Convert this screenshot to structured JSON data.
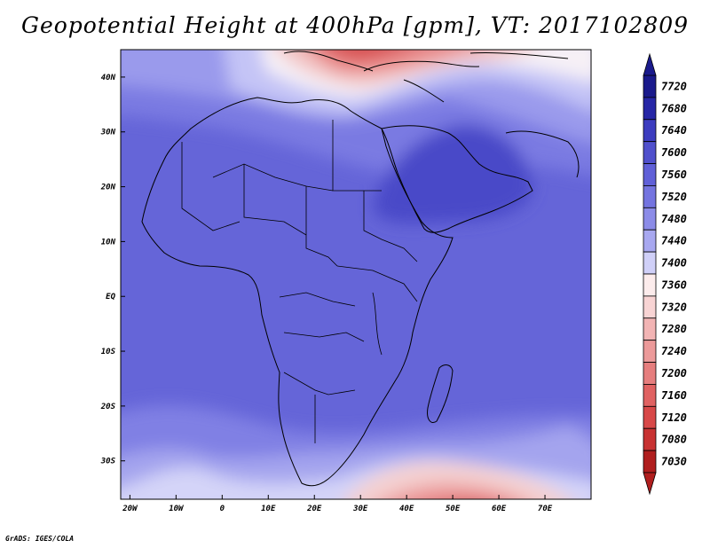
{
  "title": "Geopotential Height at 400hPa [gpm], VT: 2017102809",
  "credit": "GrADS: IGES/COLA",
  "map": {
    "lon_range": [
      -22,
      80
    ],
    "lat_range": [
      -37,
      45
    ],
    "lat_ticks": [
      {
        "value": 40,
        "label": "40N"
      },
      {
        "value": 30,
        "label": "30N"
      },
      {
        "value": 20,
        "label": "20N"
      },
      {
        "value": 10,
        "label": "10N"
      },
      {
        "value": 0,
        "label": "EQ"
      },
      {
        "value": -10,
        "label": "10S"
      },
      {
        "value": -20,
        "label": "20S"
      },
      {
        "value": -30,
        "label": "30S"
      }
    ],
    "lon_ticks": [
      {
        "value": -20,
        "label": "20W"
      },
      {
        "value": -10,
        "label": "10W"
      },
      {
        "value": 0,
        "label": "0"
      },
      {
        "value": 10,
        "label": "10E"
      },
      {
        "value": 20,
        "label": "20E"
      },
      {
        "value": 30,
        "label": "30E"
      },
      {
        "value": 40,
        "label": "40E"
      },
      {
        "value": 50,
        "label": "50E"
      },
      {
        "value": 60,
        "label": "60E"
      },
      {
        "value": 70,
        "label": "70E"
      }
    ]
  },
  "colorbar": {
    "levels": [
      {
        "label": "7720",
        "color": "#1a1a8c"
      },
      {
        "label": "7680",
        "color": "#2626a6"
      },
      {
        "label": "7640",
        "color": "#3c3cbf"
      },
      {
        "label": "7600",
        "color": "#5050cc"
      },
      {
        "label": "7560",
        "color": "#6060d8"
      },
      {
        "label": "7520",
        "color": "#7474e0"
      },
      {
        "label": "7480",
        "color": "#8c8ce8"
      },
      {
        "label": "7440",
        "color": "#a8a8f0"
      },
      {
        "label": "7400",
        "color": "#d0d0f8"
      },
      {
        "label": "7360",
        "color": "#fcecec"
      },
      {
        "label": "7320",
        "color": "#f8d4d4"
      },
      {
        "label": "7280",
        "color": "#f2b4b4"
      },
      {
        "label": "7240",
        "color": "#ec9a9a"
      },
      {
        "label": "7200",
        "color": "#e67e7e"
      },
      {
        "label": "7160",
        "color": "#e06262"
      },
      {
        "label": "7120",
        "color": "#d84848"
      },
      {
        "label": "7080",
        "color": "#c83232"
      },
      {
        "label": "7030",
        "color": "#b01e1e"
      }
    ]
  }
}
